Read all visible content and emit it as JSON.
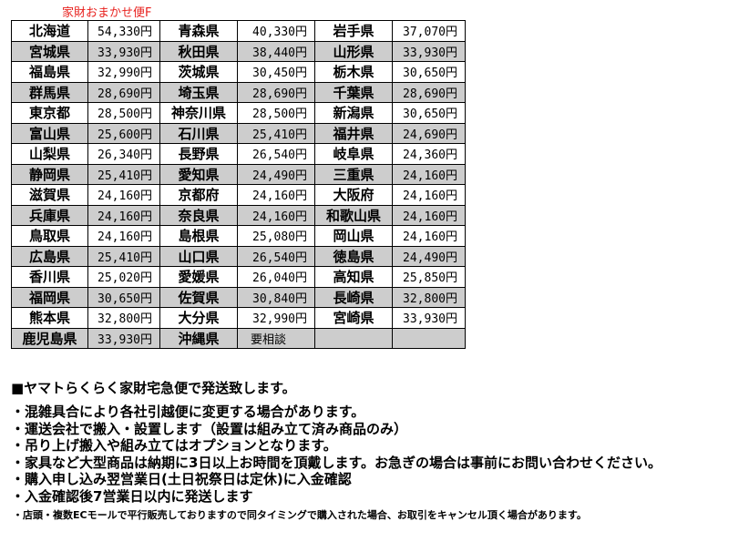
{
  "title": "家財おまかせ便F",
  "rates": [
    [
      [
        "北海道",
        "54,330円"
      ],
      [
        "青森県",
        "40,330円"
      ],
      [
        "岩手県",
        "37,070円"
      ]
    ],
    [
      [
        "宮城県",
        "33,930円"
      ],
      [
        "秋田県",
        "38,440円"
      ],
      [
        "山形県",
        "33,930円"
      ]
    ],
    [
      [
        "福島県",
        "32,990円"
      ],
      [
        "茨城県",
        "30,450円"
      ],
      [
        "栃木県",
        "30,650円"
      ]
    ],
    [
      [
        "群馬県",
        "28,690円"
      ],
      [
        "埼玉県",
        "28,690円"
      ],
      [
        "千葉県",
        "28,690円"
      ]
    ],
    [
      [
        "東京都",
        "28,500円"
      ],
      [
        "神奈川県",
        "28,500円"
      ],
      [
        "新潟県",
        "30,650円"
      ]
    ],
    [
      [
        "富山県",
        "25,600円"
      ],
      [
        "石川県",
        "25,410円"
      ],
      [
        "福井県",
        "24,690円"
      ]
    ],
    [
      [
        "山梨県",
        "26,340円"
      ],
      [
        "長野県",
        "26,540円"
      ],
      [
        "岐阜県",
        "24,360円"
      ]
    ],
    [
      [
        "静岡県",
        "25,410円"
      ],
      [
        "愛知県",
        "24,490円"
      ],
      [
        "三重県",
        "24,160円"
      ]
    ],
    [
      [
        "滋賀県",
        "24,160円"
      ],
      [
        "京都府",
        "24,160円"
      ],
      [
        "大阪府",
        "24,160円"
      ]
    ],
    [
      [
        "兵庫県",
        "24,160円"
      ],
      [
        "奈良県",
        "24,160円"
      ],
      [
        "和歌山県",
        "24,160円"
      ]
    ],
    [
      [
        "鳥取県",
        "24,160円"
      ],
      [
        "島根県",
        "25,080円"
      ],
      [
        "岡山県",
        "24,160円"
      ]
    ],
    [
      [
        "広島県",
        "25,410円"
      ],
      [
        "山口県",
        "26,540円"
      ],
      [
        "徳島県",
        "24,490円"
      ]
    ],
    [
      [
        "香川県",
        "25,020円"
      ],
      [
        "愛媛県",
        "26,040円"
      ],
      [
        "高知県",
        "25,850円"
      ]
    ],
    [
      [
        "福岡県",
        "30,650円"
      ],
      [
        "佐賀県",
        "30,840円"
      ],
      [
        "長崎県",
        "32,800円"
      ]
    ],
    [
      [
        "熊本県",
        "32,800円"
      ],
      [
        "大分県",
        "32,990円"
      ],
      [
        "宮崎県",
        "33,930円"
      ]
    ],
    [
      [
        "鹿児島県",
        "33,930円"
      ],
      [
        "沖縄県",
        "要相談"
      ],
      [
        "",
        ""
      ]
    ]
  ],
  "notes_heading": "■ヤマトらくらく家財宅急便で発送致します。",
  "notes": [
    "・混雑具合により各社引越便に変更する場合があります。",
    "・運送会社で搬入・設置します（設置は組み立て済み商品のみ）",
    "・吊り上げ搬入や組み立てはオプションとなります。",
    "・家具など大型商品は納期に3日以上お時間を頂戴します。お急ぎの場合は事前にお問い合わせください。",
    "・購入申し込み翌営業日(土日祝祭日は定休)に入金確認",
    "・入金確認後7営業日以内に発送します"
  ],
  "footnote": "・店頭・複数ECモールで平行販売しておりますので同タイミングで購入された場合、お取引をキャンセル頂く場合があります。"
}
